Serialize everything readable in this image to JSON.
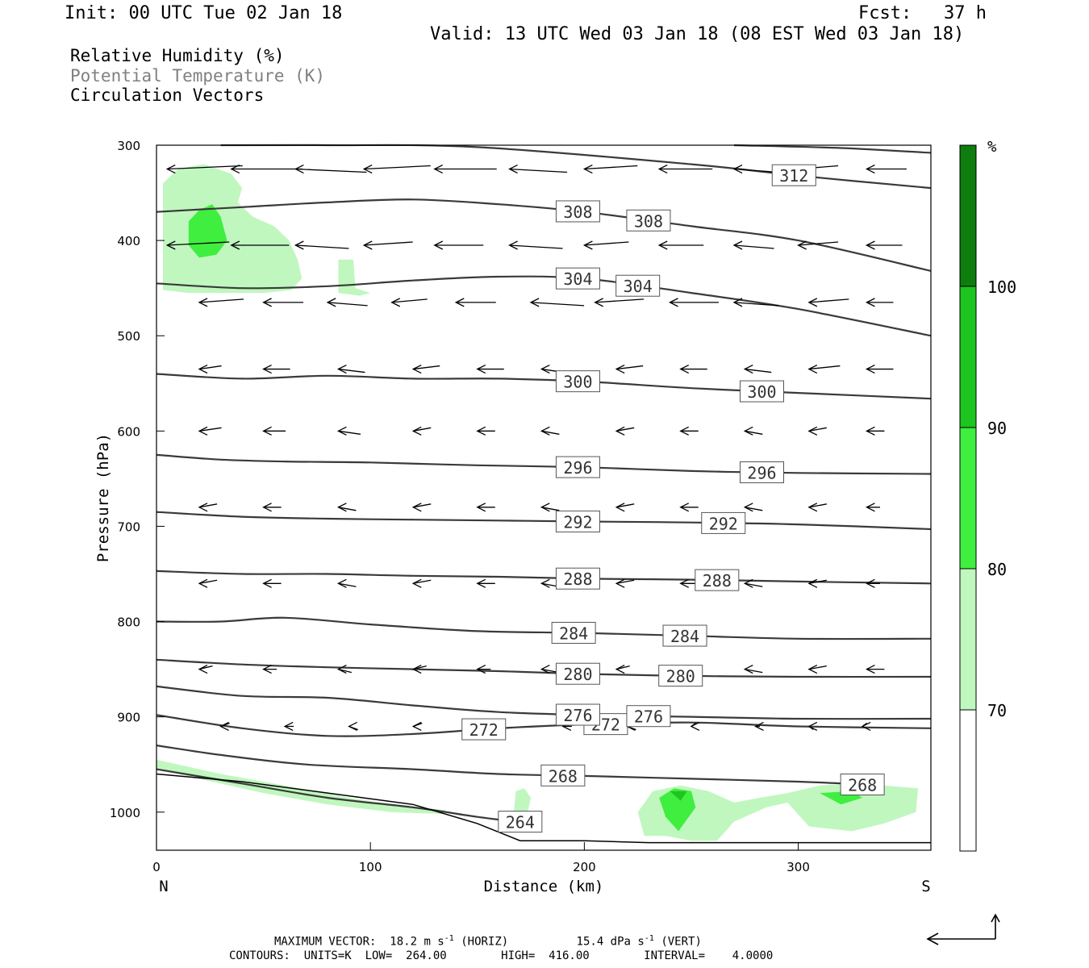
{
  "header": {
    "init": "Init: 00 UTC Tue 02 Jan 18",
    "fcst": "Fcst:   37 h",
    "valid": "Valid: 13 UTC Wed 03 Jan 18 (08 EST Wed 03 Jan 18)"
  },
  "legend": {
    "line1": "Relative Humidity (%)",
    "line2": "Potential Temperature (K)",
    "line3": "Circulation Vectors"
  },
  "footer": {
    "vector_label": "MAXIMUM VECTOR:",
    "horiz": "18.2 m s",
    "horiz_exp": "-1",
    "horiz_tag": "(HORIZ)",
    "vert": "15.4 dPa s",
    "vert_exp": "-1",
    "vert_tag": "(VERT)",
    "contours": "CONTOURS:  UNITS=K  LOW=  264.00        HIGH=  416.00        INTERVAL=    4.0000"
  },
  "colors": {
    "rh_70": "#c0f7bf",
    "rh_80": "#40ee40",
    "rh_90": "#1ec51e",
    "rh_100": "#0d7d0d",
    "theta_line": "#3a3a3a",
    "legend_theta": "#808080"
  },
  "chart_data": {
    "type": "cross-section",
    "xlabel": "Distance (km)",
    "ylabel": "Pressure (hPa)",
    "x_left_label": "N",
    "x_right_label": "S",
    "xlim": [
      0,
      362
    ],
    "ylim": [
      1040,
      300
    ],
    "x_ticks": [
      0,
      100,
      200,
      300
    ],
    "y_ticks": [
      300,
      400,
      500,
      600,
      700,
      800,
      900,
      1000
    ],
    "colorbar": {
      "unit": "%",
      "levels": [
        70,
        80,
        90,
        100
      ]
    },
    "theta_contours": [
      {
        "value": 264,
        "points": [
          [
            0,
            955
          ],
          [
            40,
            970
          ],
          [
            80,
            985
          ],
          [
            120,
            995
          ],
          [
            150,
            1005
          ],
          [
            168,
            1010
          ]
        ],
        "labels": [
          170
        ]
      },
      {
        "value": 268,
        "points": [
          [
            0,
            930
          ],
          [
            30,
            940
          ],
          [
            70,
            950
          ],
          [
            120,
            955
          ],
          [
            160,
            960
          ],
          [
            200,
            962
          ],
          [
            250,
            965
          ],
          [
            300,
            968
          ],
          [
            340,
            972
          ]
        ],
        "labels": [
          190,
          330
        ]
      },
      {
        "value": 272,
        "points": [
          [
            0,
            898
          ],
          [
            40,
            912
          ],
          [
            80,
            920
          ],
          [
            120,
            918
          ],
          [
            160,
            912
          ],
          [
            200,
            908
          ],
          [
            250,
            906
          ],
          [
            300,
            910
          ],
          [
            362,
            912
          ]
        ],
        "labels": [
          153,
          210
        ]
      },
      {
        "value": 276,
        "points": [
          [
            0,
            868
          ],
          [
            40,
            878
          ],
          [
            80,
            880
          ],
          [
            120,
            888
          ],
          [
            160,
            895
          ],
          [
            200,
            898
          ],
          [
            250,
            900
          ],
          [
            300,
            902
          ],
          [
            362,
            902
          ]
        ],
        "labels": [
          197,
          230
        ]
      },
      {
        "value": 280,
        "points": [
          [
            0,
            840
          ],
          [
            40,
            845
          ],
          [
            80,
            848
          ],
          [
            120,
            850
          ],
          [
            160,
            852
          ],
          [
            200,
            855
          ],
          [
            250,
            857
          ],
          [
            300,
            858
          ],
          [
            362,
            858
          ]
        ],
        "labels": [
          197,
          245
        ]
      },
      {
        "value": 284,
        "points": [
          [
            0,
            800
          ],
          [
            30,
            800
          ],
          [
            60,
            796
          ],
          [
            100,
            803
          ],
          [
            150,
            810
          ],
          [
            200,
            812
          ],
          [
            250,
            815
          ],
          [
            300,
            818
          ],
          [
            362,
            818
          ]
        ],
        "labels": [
          195,
          247
        ]
      },
      {
        "value": 288,
        "points": [
          [
            0,
            747
          ],
          [
            40,
            750
          ],
          [
            80,
            750
          ],
          [
            120,
            752
          ],
          [
            160,
            753
          ],
          [
            200,
            755
          ],
          [
            250,
            756
          ],
          [
            300,
            758
          ],
          [
            362,
            760
          ]
        ],
        "labels": [
          197,
          262
        ]
      },
      {
        "value": 292,
        "points": [
          [
            0,
            685
          ],
          [
            40,
            690
          ],
          [
            80,
            692
          ],
          [
            120,
            693
          ],
          [
            160,
            694
          ],
          [
            200,
            695
          ],
          [
            250,
            696
          ],
          [
            300,
            698
          ],
          [
            362,
            703
          ]
        ],
        "labels": [
          197,
          265
        ]
      },
      {
        "value": 296,
        "points": [
          [
            0,
            625
          ],
          [
            30,
            630
          ],
          [
            60,
            632
          ],
          [
            100,
            633
          ],
          [
            150,
            636
          ],
          [
            200,
            638
          ],
          [
            250,
            642
          ],
          [
            300,
            644
          ],
          [
            362,
            645
          ]
        ],
        "labels": [
          197,
          283
        ]
      },
      {
        "value": 300,
        "points": [
          [
            0,
            540
          ],
          [
            40,
            545
          ],
          [
            80,
            542
          ],
          [
            120,
            545
          ],
          [
            160,
            545
          ],
          [
            200,
            548
          ],
          [
            250,
            555
          ],
          [
            300,
            560
          ],
          [
            362,
            566
          ]
        ],
        "labels": [
          197,
          283
        ]
      },
      {
        "value": 304,
        "points": [
          [
            0,
            445
          ],
          [
            40,
            450
          ],
          [
            80,
            448
          ],
          [
            120,
            442
          ],
          [
            160,
            438
          ],
          [
            200,
            440
          ],
          [
            250,
            455
          ],
          [
            300,
            472
          ],
          [
            362,
            500
          ]
        ],
        "labels": [
          197,
          225
        ]
      },
      {
        "value": 308,
        "points": [
          [
            0,
            370
          ],
          [
            40,
            365
          ],
          [
            80,
            360
          ],
          [
            120,
            357
          ],
          [
            160,
            362
          ],
          [
            200,
            370
          ],
          [
            250,
            385
          ],
          [
            300,
            400
          ],
          [
            362,
            432
          ]
        ],
        "labels": [
          197,
          230
        ]
      },
      {
        "value": 312,
        "points": [
          [
            30,
            300
          ],
          [
            80,
            300
          ],
          [
            150,
            302
          ],
          [
            250,
            320
          ],
          [
            300,
            332
          ],
          [
            362,
            345
          ]
        ],
        "labels": [
          298
        ]
      },
      {
        "value": 316,
        "points": [
          [
            270,
            300
          ],
          [
            320,
            303
          ],
          [
            362,
            308
          ]
        ],
        "labels": []
      }
    ],
    "rh_regions": [
      {
        "level": 70,
        "points": [
          [
            3,
            340
          ],
          [
            10,
            325
          ],
          [
            22,
            320
          ],
          [
            35,
            330
          ],
          [
            40,
            345
          ],
          [
            38,
            360
          ],
          [
            45,
            375
          ],
          [
            55,
            385
          ],
          [
            62,
            400
          ],
          [
            66,
            420
          ],
          [
            68,
            440
          ],
          [
            63,
            452
          ],
          [
            50,
            455
          ],
          [
            30,
            455
          ],
          [
            15,
            455
          ],
          [
            3,
            452
          ]
        ]
      },
      {
        "level": 70,
        "points": [
          [
            85,
            420
          ],
          [
            92,
            420
          ],
          [
            93,
            450
          ],
          [
            100,
            455
          ],
          [
            95,
            458
          ],
          [
            85,
            455
          ]
        ]
      },
      {
        "level": 80,
        "points": [
          [
            15,
            380
          ],
          [
            20,
            368
          ],
          [
            26,
            362
          ],
          [
            30,
            375
          ],
          [
            33,
            400
          ],
          [
            28,
            415
          ],
          [
            20,
            418
          ],
          [
            15,
            405
          ]
        ]
      },
      {
        "level": 70,
        "points": [
          [
            0,
            945
          ],
          [
            30,
            960
          ],
          [
            60,
            972
          ],
          [
            90,
            985
          ],
          [
            110,
            992
          ],
          [
            135,
            998
          ],
          [
            135,
            1002
          ],
          [
            110,
            1000
          ],
          [
            80,
            992
          ],
          [
            50,
            980
          ],
          [
            20,
            965
          ],
          [
            0,
            955
          ]
        ]
      },
      {
        "level": 70,
        "points": [
          [
            168,
            978
          ],
          [
            172,
            975
          ],
          [
            175,
            985
          ],
          [
            173,
            1005
          ],
          [
            170,
            1012
          ],
          [
            167,
            1000
          ]
        ]
      },
      {
        "level": 70,
        "points": [
          [
            225,
            1000
          ],
          [
            232,
            978
          ],
          [
            245,
            972
          ],
          [
            258,
            978
          ],
          [
            270,
            990
          ],
          [
            282,
            985
          ],
          [
            295,
            980
          ],
          [
            310,
            972
          ],
          [
            325,
            970
          ],
          [
            340,
            972
          ],
          [
            356,
            975
          ],
          [
            355,
            1000
          ],
          [
            340,
            1012
          ],
          [
            325,
            1020
          ],
          [
            305,
            1015
          ],
          [
            295,
            990
          ],
          [
            285,
            995
          ],
          [
            270,
            1010
          ],
          [
            262,
            1030
          ],
          [
            250,
            1030
          ],
          [
            238,
            1025
          ],
          [
            228,
            1025
          ]
        ]
      },
      {
        "level": 80,
        "points": [
          [
            235,
            985
          ],
          [
            242,
            975
          ],
          [
            250,
            978
          ],
          [
            252,
            995
          ],
          [
            244,
            1020
          ],
          [
            238,
            1005
          ]
        ]
      },
      {
        "level": 90,
        "points": [
          [
            240,
            978
          ],
          [
            248,
            978
          ],
          [
            245,
            988
          ]
        ]
      },
      {
        "level": 80,
        "points": [
          [
            310,
            980
          ],
          [
            325,
            978
          ],
          [
            330,
            985
          ],
          [
            320,
            992
          ]
        ]
      }
    ],
    "terrain": [
      [
        0,
        960
      ],
      [
        40,
        968
      ],
      [
        80,
        980
      ],
      [
        120,
        992
      ],
      [
        150,
        1012
      ],
      [
        170,
        1030
      ],
      [
        200,
        1030
      ],
      [
        230,
        1032
      ],
      [
        270,
        1032
      ],
      [
        300,
        1032
      ],
      [
        362,
        1032
      ]
    ],
    "vectors": [
      {
        "p": 325,
        "x": [
          5,
          35,
          65,
          97,
          130,
          165,
          200,
          235,
          270,
          300,
          332
        ],
        "u": [
          -17,
          -16,
          -16,
          -15,
          -14,
          -13,
          -12,
          -12,
          -10,
          -9,
          -9
        ]
      },
      {
        "p": 405,
        "x": [
          5,
          35,
          65,
          97,
          130,
          165,
          200,
          235,
          270,
          300,
          332
        ],
        "u": [
          -14,
          -13,
          -12,
          -11,
          -11,
          -12,
          -10,
          -10,
          -9,
          -9,
          -8
        ]
      },
      {
        "p": 465,
        "x": [
          20,
          50,
          80,
          110,
          140,
          175,
          205,
          240,
          270,
          305,
          332
        ],
        "u": [
          -10,
          -9,
          -9,
          -8,
          -9,
          -12,
          -11,
          -11,
          -10,
          -9,
          -6
        ]
      },
      {
        "p": 535,
        "x": [
          20,
          50,
          85,
          120,
          150,
          180,
          215,
          245,
          275,
          305,
          332
        ],
        "u": [
          -5,
          -6,
          -6,
          -6,
          -6,
          -5,
          -6,
          -6,
          -6,
          -7,
          -6
        ]
      },
      {
        "p": 600,
        "x": [
          20,
          50,
          85,
          120,
          150,
          180,
          215,
          245,
          275,
          305,
          332
        ],
        "u": [
          -5,
          -5,
          -5,
          -4,
          -4,
          -4,
          -4,
          -4,
          -4,
          -4,
          -4
        ]
      },
      {
        "p": 680,
        "x": [
          20,
          50,
          85,
          120,
          150,
          180,
          215,
          245,
          275,
          305,
          332
        ],
        "u": [
          -4,
          -4,
          -4,
          -4,
          -4,
          -4,
          -4,
          -4,
          -4,
          -4,
          -3
        ]
      },
      {
        "p": 760,
        "x": [
          20,
          50,
          85,
          120,
          150,
          180,
          215,
          245,
          275,
          305,
          332
        ],
        "u": [
          -4,
          -4,
          -4,
          -4,
          -4,
          -4,
          -4,
          -4,
          -4,
          -4,
          -3
        ]
      },
      {
        "p": 850,
        "x": [
          20,
          50,
          85,
          120,
          150,
          180,
          215,
          245,
          275,
          305,
          332
        ],
        "u": [
          -3,
          -3,
          -3,
          -3,
          -3,
          -4,
          -3,
          -3,
          -4,
          -4,
          -4
        ]
      },
      {
        "p": 910,
        "x": [
          30,
          60,
          90,
          120,
          190,
          220,
          250,
          280,
          305,
          330
        ],
        "u": [
          -2,
          -2,
          -2,
          -2,
          -2,
          -2,
          -1,
          -1,
          -1,
          -1
        ]
      }
    ]
  }
}
